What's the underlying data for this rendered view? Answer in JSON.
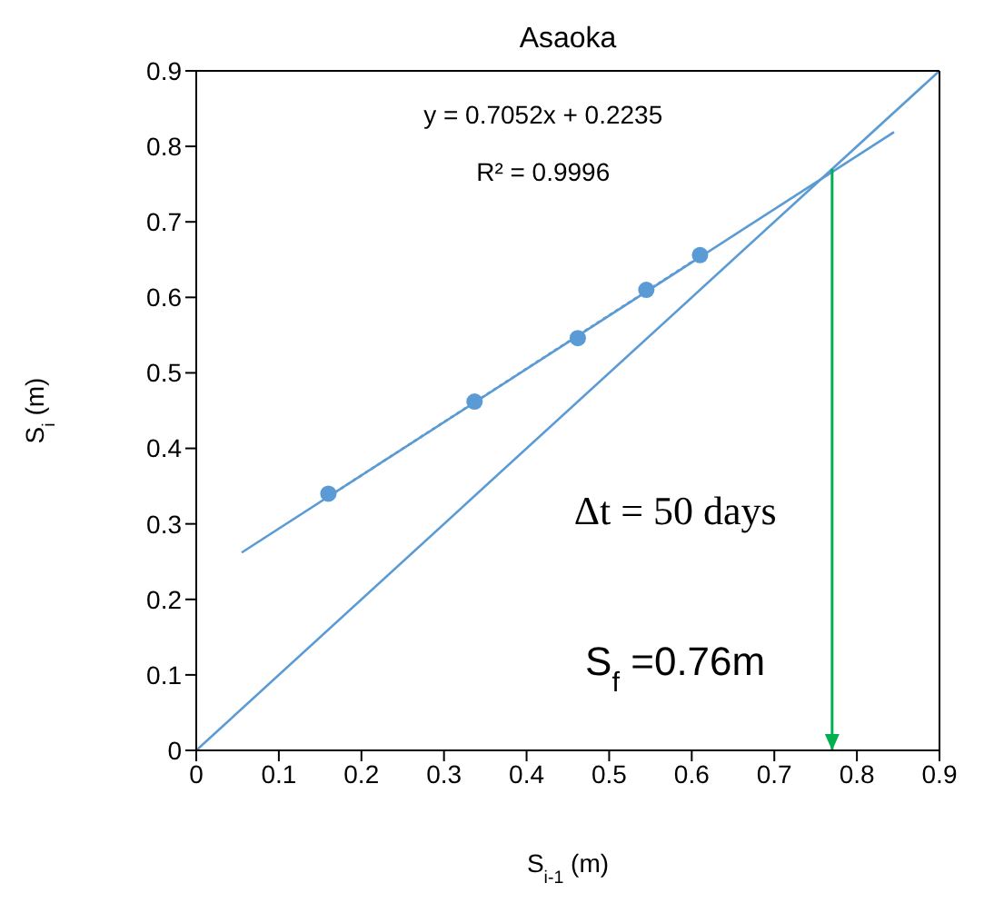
{
  "chart_data": {
    "type": "scatter",
    "title": "Asaoka",
    "xlabel": "S$_{i-1}$ (m)",
    "ylabel": "S$_{i}$ (m)",
    "xlim": [
      0,
      0.9
    ],
    "xticks": [
      0,
      0.1,
      0.2,
      0.3,
      0.4,
      0.5,
      0.6,
      0.7,
      0.8,
      0.9
    ],
    "ylim": [
      0,
      0.9
    ],
    "yticks": [
      0,
      0.1,
      0.2,
      0.3,
      0.4,
      0.5,
      0.6,
      0.7,
      0.8,
      0.9
    ],
    "grid": false,
    "legend": false,
    "series": [
      {
        "color": "#5b9bd5",
        "marker": "circle",
        "x": [
          0.16,
          0.337,
          0.462,
          0.545,
          0.61
        ],
        "values": [
          0.34,
          0.462,
          0.546,
          0.61,
          0.656
        ]
      },
      {
        "type": "line",
        "color": "#5b9bd5",
        "marker": "none",
        "line_style": "dotted",
        "x": [
          0.16,
          0.61
        ],
        "values": [
          0.336,
          0.654
        ]
      },
      {
        "type": "line",
        "color": "#5b9bd5",
        "marker": "none",
        "line_style": "solid",
        "x": [
          0.055,
          0.845
        ],
        "values": [
          0.262,
          0.819
        ]
      },
      {
        "type": "line",
        "color": "#5b9bd5",
        "marker": "none",
        "line_style": "solid",
        "x": [
          0,
          0.9
        ],
        "values": [
          0,
          0.9
        ]
      }
    ],
    "ref_lines": [
      {
        "axis": "x",
        "value": 0.77,
        "color": "#00b050"
      }
    ],
    "annotations": [
      "y = 0.7052x + 0.2235",
      "R² = 0.9996",
      "Δt = 50 days",
      "S$_{f}$ =0.76m"
    ]
  }
}
